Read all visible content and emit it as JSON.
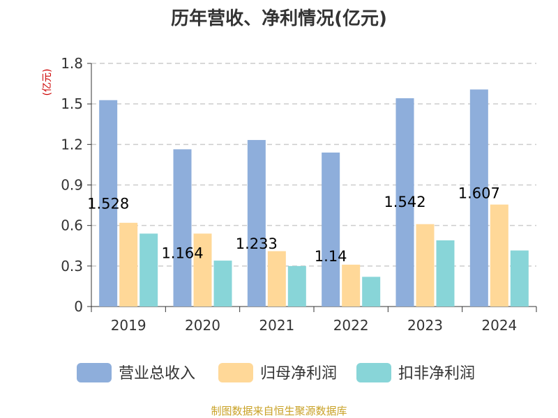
{
  "title": "历年营收、净利情况(亿元)",
  "source": "制图数据来自恒生聚源数据库",
  "chart_data": {
    "type": "bar",
    "title": "历年营收、净利情况(亿元)",
    "unit_label": "(亿元)",
    "categories": [
      "2019",
      "2020",
      "2021",
      "2022",
      "2023",
      "2024"
    ],
    "series": [
      {
        "name": "营业总收入",
        "color": "#8eaedb",
        "values": [
          1.528,
          1.164,
          1.233,
          1.14,
          1.542,
          1.607
        ]
      },
      {
        "name": "归母净利润",
        "color": "#ffd898",
        "values": [
          0.62,
          0.54,
          0.41,
          0.31,
          0.61,
          0.755
        ]
      },
      {
        "name": "扣非净利润",
        "color": "#88d5d8",
        "values": [
          0.54,
          0.34,
          0.3,
          0.22,
          0.49,
          0.415
        ]
      }
    ],
    "data_labels": [
      "1.528",
      "1.164",
      "1.233",
      "1.14",
      "1.542",
      "1.607"
    ],
    "ylim": [
      0,
      1.8
    ],
    "yticks": [
      "0",
      "0.3",
      "0.6",
      "0.9",
      "1.2",
      "1.5",
      "1.8"
    ],
    "grid": true,
    "legend_position": "bottom"
  }
}
